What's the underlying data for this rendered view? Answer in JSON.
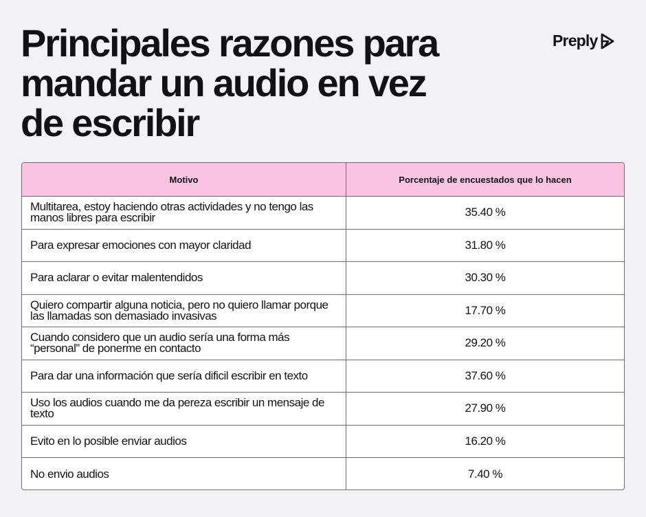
{
  "title_lines": [
    "Principales razones para",
    "mandar un audio en vez",
    "de escribir"
  ],
  "brand": {
    "name": "Preply",
    "icon": "preply-arrow-icon"
  },
  "colors": {
    "background": "#f2f1f7",
    "header": "#fbc4e0",
    "border": "#6b6b75",
    "text": "#121117"
  },
  "chart_data": {
    "type": "table",
    "title": "Principales razones para mandar un audio en vez de escribir",
    "columns": [
      "Motivo",
      "Porcentaje de encuestados que lo hacen"
    ],
    "rows": [
      {
        "motivo": "Multitarea, estoy haciendo otras actividades y no tengo las manos libres para escribir",
        "value": 35.4,
        "display": "35.40 %"
      },
      {
        "motivo": "Para expresar emociones con mayor claridad",
        "value": 31.8,
        "display": "31.80 %"
      },
      {
        "motivo": "Para aclarar o evitar malentendidos",
        "value": 30.3,
        "display": "30.30 %"
      },
      {
        "motivo": "Quiero compartir alguna noticia, pero no quiero llamar porque las llamadas son demasiado invasivas",
        "value": 17.7,
        "display": "17.70 %"
      },
      {
        "motivo": "Cuando considero que un audio sería una forma más “personal” de ponerme en contacto",
        "value": 29.2,
        "display": "29.20 %"
      },
      {
        "motivo": "Para dar una información que sería dificil escribir en texto",
        "value": 37.6,
        "display": "37.60 %"
      },
      {
        "motivo": "Uso los audios cuando me da pereza escribir un mensaje de texto",
        "value": 27.9,
        "display": "27.90 %"
      },
      {
        "motivo": "Evito en lo posible enviar audios",
        "value": 16.2,
        "display": "16.20 %"
      },
      {
        "motivo": "No envio audios",
        "value": 7.4,
        "display": "7.40 %"
      }
    ]
  }
}
